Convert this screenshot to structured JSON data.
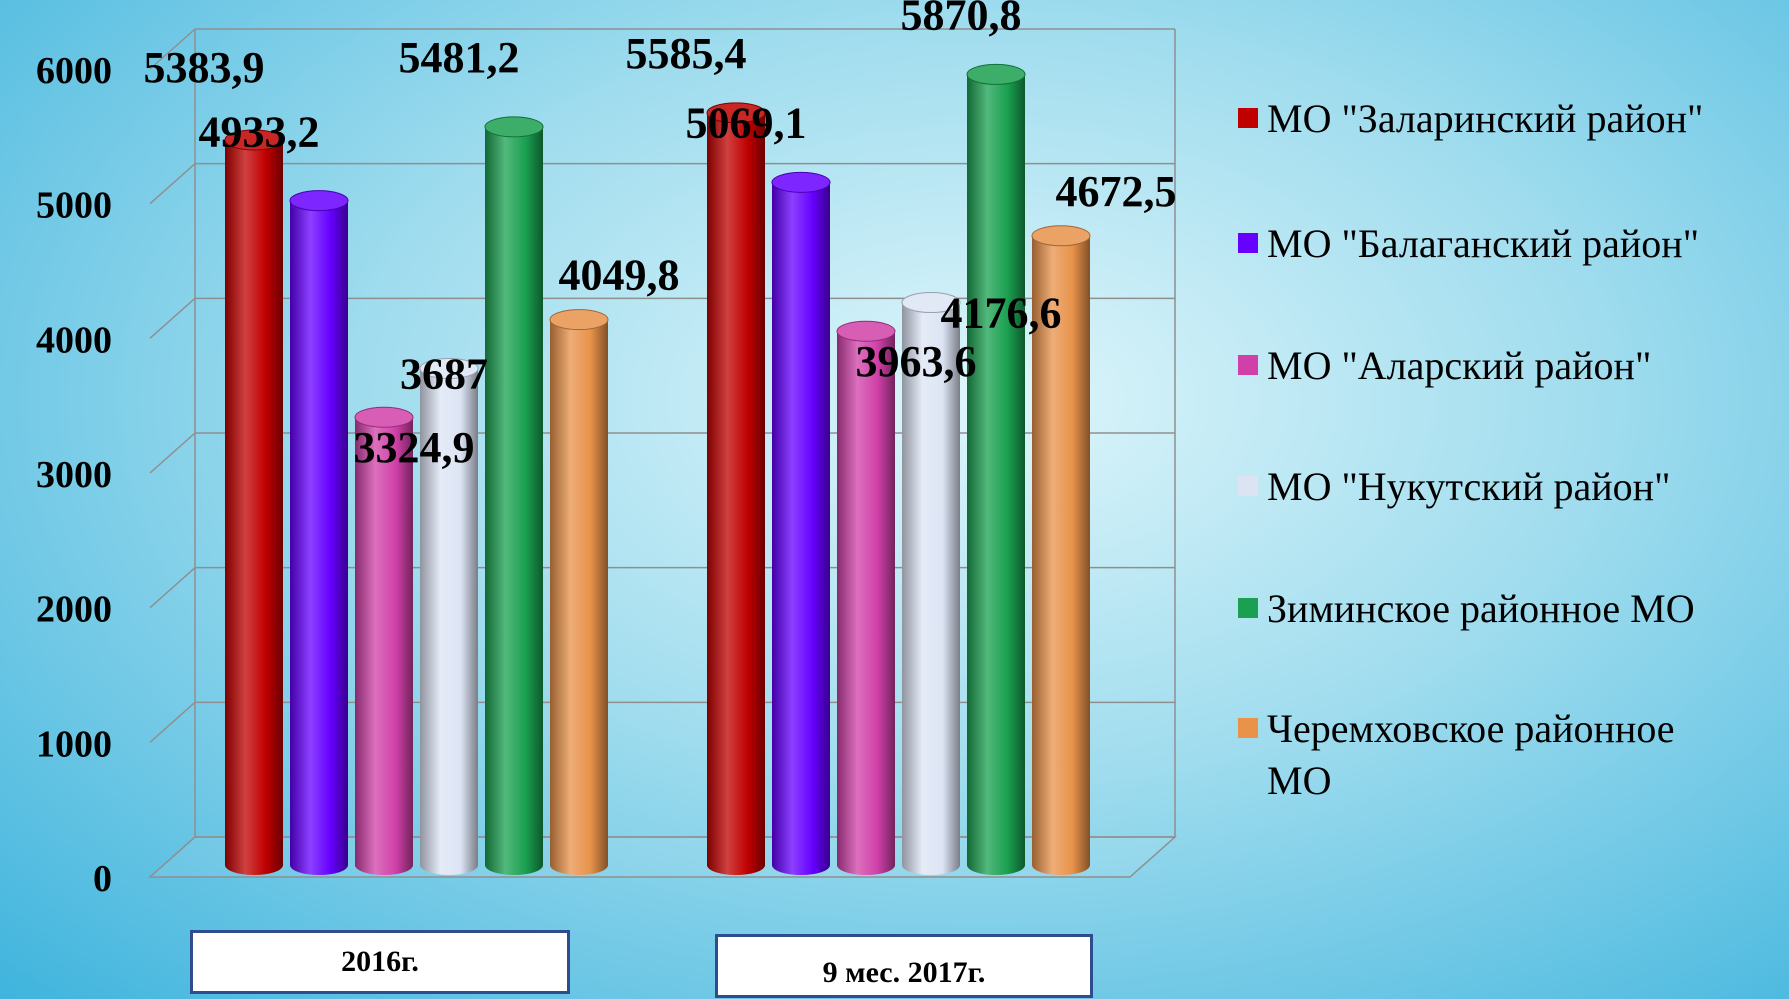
{
  "chart_data": {
    "type": "bar",
    "categories": [
      "2016г.",
      "9 мес. 2017г."
    ],
    "series": [
      {
        "name": "МО \"Заларинский район\"",
        "color": "#c00000",
        "values": [
          5383.9,
          5585.4
        ],
        "labels": [
          "5383,9",
          "5585,4"
        ]
      },
      {
        "name": "МО \"Балаганский район\"",
        "color": "#6600ff",
        "values": [
          4933.2,
          5069.1
        ],
        "labels": [
          "4933,2",
          "5069,1"
        ]
      },
      {
        "name": "МО \"Аларский район\"",
        "color": "#d040a8",
        "values": [
          3324.9,
          3963.6
        ],
        "labels": [
          "3324,9",
          "3963,6"
        ]
      },
      {
        "name": "МО \"Нукутский район\"",
        "color": "#dce4f4",
        "values": [
          3687,
          4176.6
        ],
        "labels": [
          "3687",
          "4176,6"
        ]
      },
      {
        "name": "Зиминское районное МО",
        "color": "#1aa050",
        "values": [
          5481.2,
          5870.8
        ],
        "labels": [
          "5481,2",
          "5870,8"
        ]
      },
      {
        "name": "Черемховское районное МО",
        "color": "#e8924a",
        "values": [
          4049.8,
          4672.5
        ],
        "labels": [
          "4049,8",
          "4672,5"
        ]
      }
    ],
    "yticks": [
      "0",
      "1000",
      "2000",
      "3000",
      "4000",
      "5000",
      "6000"
    ],
    "ylim": [
      0,
      6000
    ],
    "grid": true,
    "legend_position": "right",
    "legend_lines": [
      [
        "МО \"Заларинский район\""
      ],
      [
        "МО \"Балаганский район\""
      ],
      [
        "МО \"Аларский район\""
      ],
      [
        "МО \"Нукутский район\""
      ],
      [
        "Зиминское районное МО"
      ],
      [
        "Черемховское районное",
        "МО"
      ]
    ]
  }
}
